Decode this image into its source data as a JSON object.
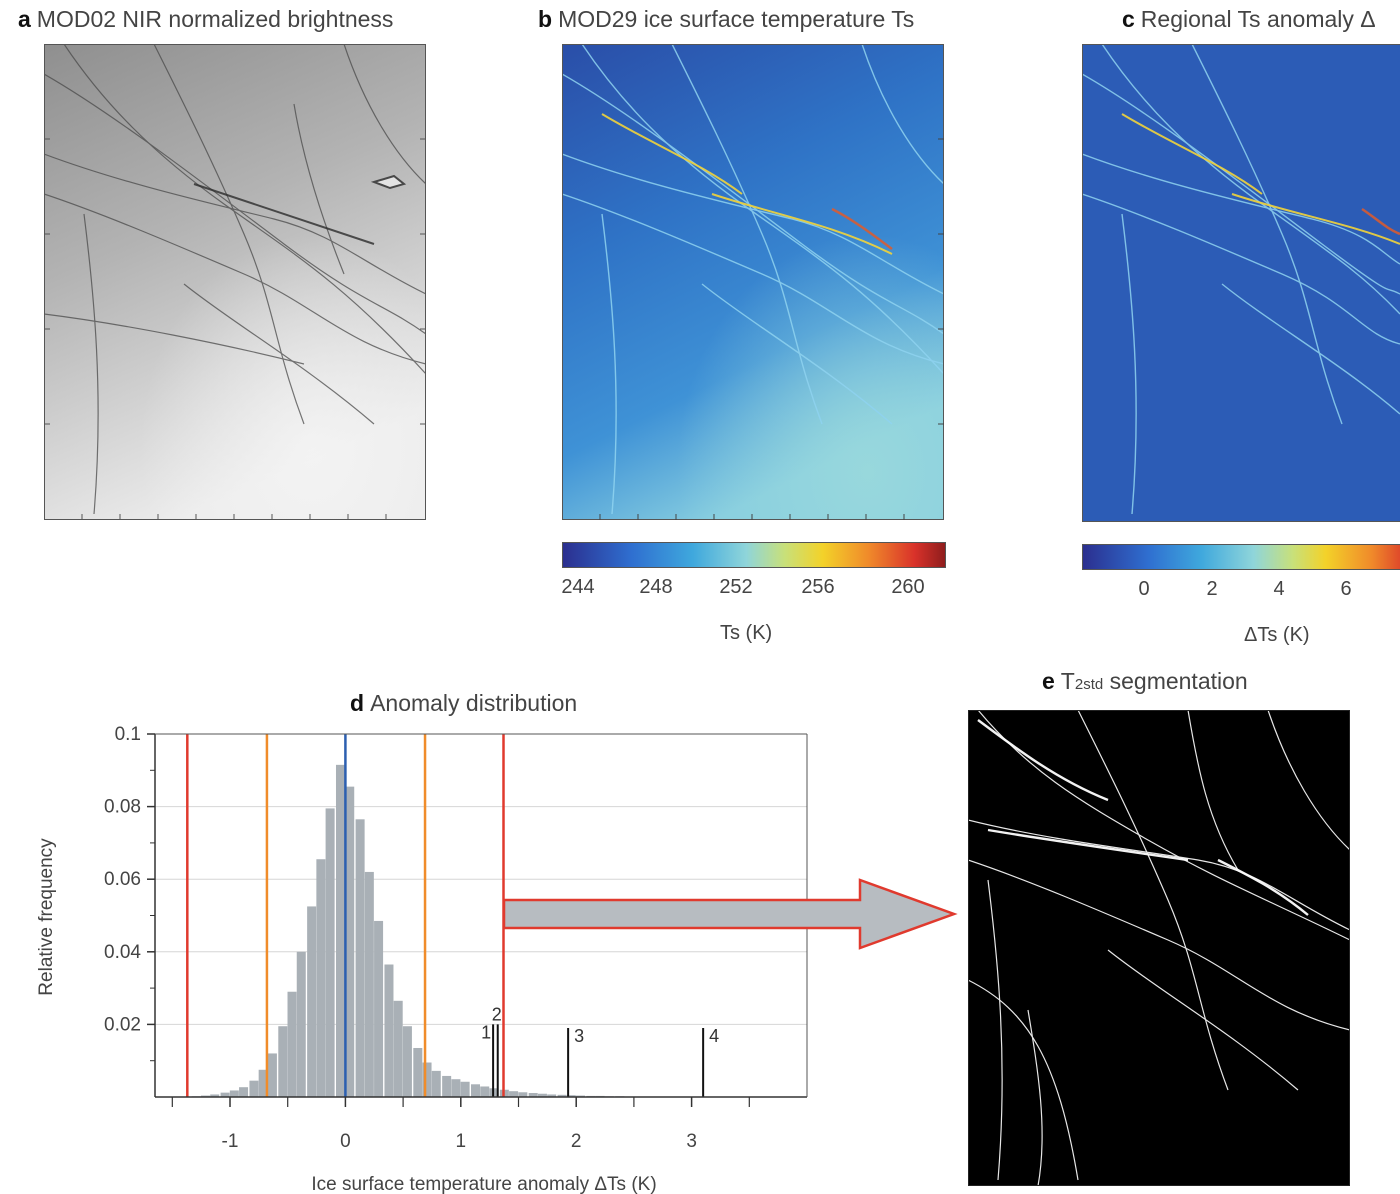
{
  "panels": {
    "a": {
      "letter": "a",
      "title": "MOD02 NIR normalized brightness"
    },
    "b": {
      "letter": "b",
      "title": "MOD29 ice surface temperature Ts",
      "colorbar": {
        "ticks": [
          "244",
          "248",
          "252",
          "256",
          "260"
        ],
        "label": "Ts (K)"
      }
    },
    "c": {
      "letter": "c",
      "title": "Regional Ts anomaly Δ",
      "colorbar": {
        "ticks": [
          "0",
          "2",
          "4",
          "6"
        ],
        "label": "ΔTs (K)"
      }
    },
    "d": {
      "letter": "d",
      "title": "Anomaly distribution"
    },
    "e": {
      "letter": "e",
      "title_main": "T",
      "title_sub": "2std",
      "title_rest": " segmentation"
    }
  },
  "colors": {
    "histogram_bar": "#a9b0b6",
    "mean_line": "#2c5fb0",
    "one_std_line": "#f08c2a",
    "two_std_line": "#e03a2e",
    "arrow_fill": "#b7bcc1",
    "arrow_stroke": "#e03a2e"
  },
  "chart_data": {
    "type": "bar",
    "title": "Anomaly distribution",
    "xlabel": "Ice surface temperature anomaly ΔTs (K)",
    "ylabel": "Relative frequency",
    "xlim": [
      -1.65,
      4.0
    ],
    "ylim": [
      0,
      0.1
    ],
    "x_ticks": [
      "-1",
      "0",
      "1",
      "2",
      "3"
    ],
    "y_ticks": [
      "0.02",
      "0.04",
      "0.06",
      "0.08",
      "0.1"
    ],
    "grid": true,
    "bin_width": 0.0833,
    "bin_centers": [
      -1.29,
      -1.21,
      -1.13,
      -1.04,
      -0.96,
      -0.88,
      -0.79,
      -0.71,
      -0.63,
      -0.54,
      -0.46,
      -0.38,
      -0.29,
      -0.21,
      -0.13,
      -0.04,
      0.04,
      0.13,
      0.21,
      0.29,
      0.38,
      0.46,
      0.54,
      0.63,
      0.71,
      0.79,
      0.88,
      0.96,
      1.04,
      1.13,
      1.21,
      1.29,
      1.38,
      1.46,
      1.54,
      1.63,
      1.71,
      1.79,
      1.88,
      1.96,
      2.04,
      2.13,
      2.21,
      2.29,
      2.38,
      2.46,
      2.54,
      2.63
    ],
    "values": [
      0.0002,
      0.0004,
      0.0007,
      0.0012,
      0.0018,
      0.0027,
      0.0045,
      0.0075,
      0.012,
      0.0195,
      0.029,
      0.04,
      0.0525,
      0.0655,
      0.0795,
      0.0915,
      0.0855,
      0.0765,
      0.062,
      0.0485,
      0.0365,
      0.0265,
      0.0195,
      0.0135,
      0.0095,
      0.0072,
      0.0058,
      0.0049,
      0.0042,
      0.0035,
      0.0029,
      0.0024,
      0.002,
      0.0016,
      0.0013,
      0.0011,
      0.0009,
      0.0007,
      0.0006,
      0.0005,
      0.0004,
      0.0003,
      0.0003,
      0.0002,
      0.0002,
      0.0001,
      0.0001,
      0.0001
    ],
    "vertical_lines": [
      {
        "x": 0.0,
        "style": "mean"
      },
      {
        "x": -0.68,
        "style": "one_std"
      },
      {
        "x": 0.69,
        "style": "one_std"
      },
      {
        "x": -1.37,
        "style": "two_std"
      },
      {
        "x": 1.37,
        "style": "two_std"
      }
    ],
    "markers": [
      {
        "label": "1",
        "x": 1.28,
        "height": 0.02
      },
      {
        "label": "2",
        "x": 1.32,
        "height": 0.02
      },
      {
        "label": "3",
        "x": 1.93,
        "height": 0.019
      },
      {
        "label": "4",
        "x": 3.1,
        "height": 0.019
      }
    ]
  }
}
